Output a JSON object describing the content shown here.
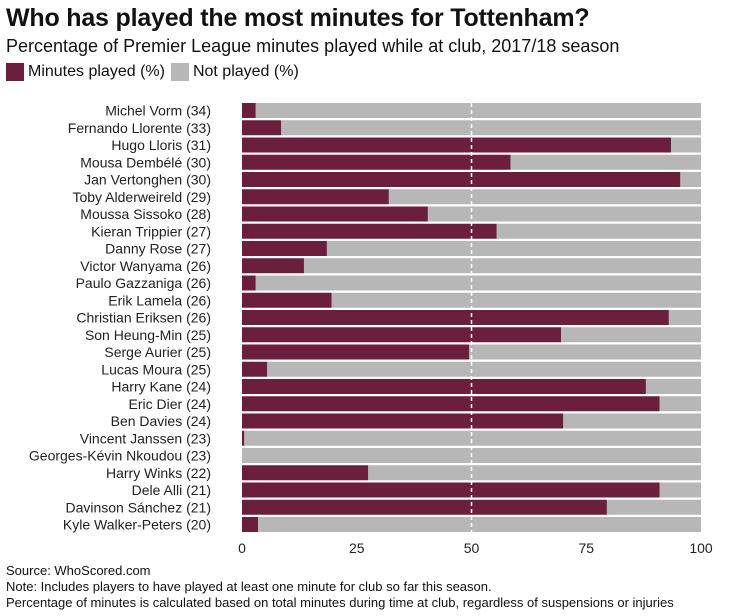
{
  "title": "Who has played the most minutes for Tottenham?",
  "subtitle": "Percentage of Premier League minutes played while at club, 2017/18 season",
  "legend": [
    {
      "label": "Minutes played (%)",
      "color": "#6b1f3c"
    },
    {
      "label": "Not played (%)",
      "color": "#b7b7b7"
    }
  ],
  "footer": {
    "source": "Source: WhoScored.com",
    "note1": "Note: Includes players to have played at least one minute for club so far this season.",
    "note2": "Percentage of minutes is calculated based on total minutes during time at club, regardless of suspensions or injuries"
  },
  "chart_data": {
    "type": "bar",
    "orientation": "horizontal",
    "stacked": true,
    "categories": [
      "Michel Vorm (34)",
      "Fernando Llorente (33)",
      "Hugo Lloris (31)",
      "Mousa Dembélé (30)",
      "Jan Vertonghen (30)",
      "Toby Alderweireld (29)",
      "Moussa Sissoko (28)",
      "Kieran Trippier (27)",
      "Danny Rose (27)",
      "Victor Wanyama (26)",
      "Paulo Gazzaniga (26)",
      "Erik Lamela (26)",
      "Christian Eriksen (26)",
      "Son Heung-Min (25)",
      "Serge Aurier (25)",
      "Lucas Moura (25)",
      "Harry Kane (24)",
      "Eric Dier (24)",
      "Ben Davies (24)",
      "Vincent Janssen (23)",
      "Georges-Kévin Nkoudou (23)",
      "Harry Winks (22)",
      "Dele Alli (21)",
      "Davinson Sánchez (21)",
      "Kyle Walker-Peters (20)"
    ],
    "series": [
      {
        "name": "Minutes played (%)",
        "color": "#6b1f3c",
        "values": [
          3,
          8.5,
          93.5,
          58.5,
          95.5,
          32,
          40.5,
          55.5,
          18.5,
          13.5,
          3,
          19.5,
          93,
          69.5,
          49.5,
          5.5,
          88,
          91,
          70,
          0.5,
          0,
          27.5,
          91,
          79.5,
          3.5
        ]
      },
      {
        "name": "Not played (%)",
        "color": "#b7b7b7",
        "values": [
          97,
          91.5,
          6.5,
          41.5,
          4.5,
          68,
          59.5,
          44.5,
          81.5,
          86.5,
          97,
          80.5,
          7,
          30.5,
          50.5,
          94.5,
          12,
          9,
          30,
          99.5,
          100,
          72.5,
          9,
          20.5,
          96.5
        ]
      }
    ],
    "xlim": [
      0,
      100
    ],
    "xticks": [
      "0",
      "25",
      "50",
      "75",
      "100"
    ],
    "reference_line": 50,
    "grid": false
  }
}
